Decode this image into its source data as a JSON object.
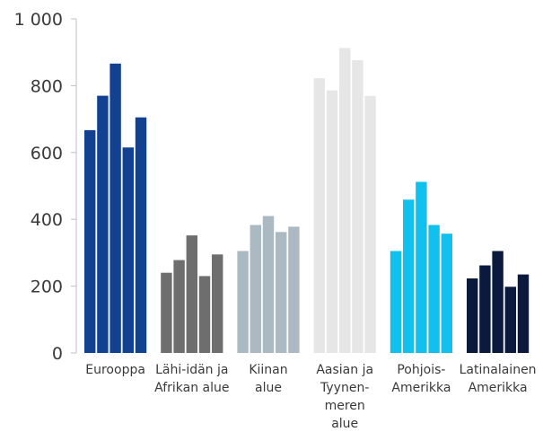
{
  "chart_data": {
    "type": "bar",
    "title": "",
    "xlabel": "",
    "ylabel": "",
    "ylim": [
      0,
      1000
    ],
    "yticks": [
      0,
      200,
      400,
      600,
      800,
      1000
    ],
    "ytick_labels": [
      "0",
      "200",
      "400",
      "600",
      "800",
      "1 000"
    ],
    "grid": false,
    "legend": "none",
    "groups": [
      {
        "label_lines": [
          "Eurooppa"
        ],
        "color": "#124191",
        "values": [
          667,
          770,
          866,
          615,
          705
        ]
      },
      {
        "label_lines": [
          "Lähi-idän ja",
          "Afrikan alue"
        ],
        "color": "#6e6e6e",
        "values": [
          240,
          278,
          352,
          230,
          295
        ]
      },
      {
        "label_lines": [
          "Kiinan",
          "alue"
        ],
        "color": "#aab9c2",
        "values": [
          305,
          383,
          410,
          362,
          378
        ]
      },
      {
        "label_lines": [
          "Aasian ja",
          "Tyynen-",
          "meren",
          "alue"
        ],
        "color": "#e6e6e6",
        "values": [
          822,
          786,
          913,
          876,
          769
        ]
      },
      {
        "label_lines": [
          "Pohjois-",
          "Amerikka"
        ],
        "color": "#12c0ee",
        "values": [
          305,
          459,
          512,
          383,
          357
        ]
      },
      {
        "label_lines": [
          "Latinalainen",
          "Amerikka"
        ],
        "color": "#0b1a3c",
        "values": [
          223,
          262,
          305,
          198,
          235
        ]
      }
    ]
  }
}
